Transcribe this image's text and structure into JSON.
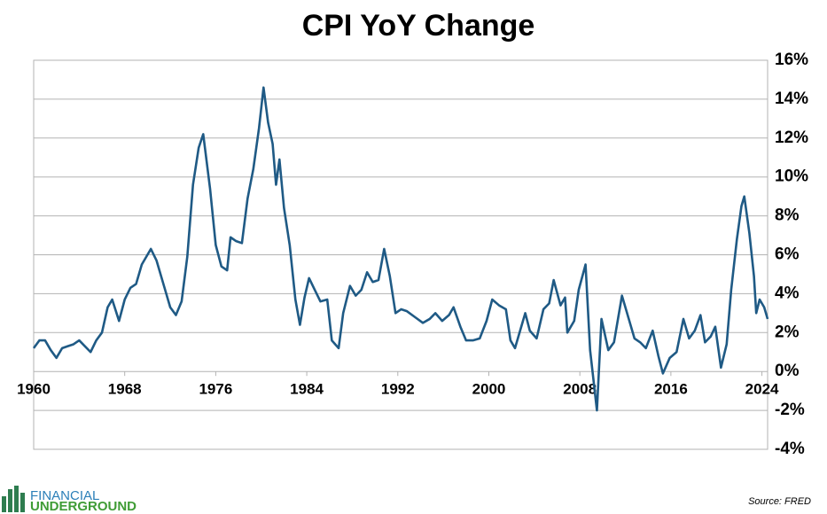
{
  "chart_data": {
    "type": "line",
    "title": "CPI YoY Change",
    "x": [
      1960.0,
      1960.5,
      1961.0,
      1961.5,
      1962.0,
      1962.5,
      1963.0,
      1963.5,
      1964.0,
      1964.5,
      1965.0,
      1965.5,
      1966.0,
      1966.5,
      1966.9,
      1967.5,
      1968.0,
      1968.5,
      1969.0,
      1969.5,
      1970.0,
      1970.3,
      1970.8,
      1971.5,
      1972.0,
      1972.5,
      1973.0,
      1973.5,
      1974.0,
      1974.5,
      1974.9,
      1975.5,
      1976.0,
      1976.5,
      1977.0,
      1977.3,
      1977.8,
      1978.3,
      1978.8,
      1979.3,
      1979.8,
      1980.2,
      1980.6,
      1981.0,
      1981.3,
      1981.6,
      1982.0,
      1982.5,
      1983.0,
      1983.4,
      1983.8,
      1984.2,
      1984.7,
      1985.2,
      1985.8,
      1986.2,
      1986.8,
      1987.2,
      1987.8,
      1988.3,
      1988.8,
      1989.3,
      1989.8,
      1990.3,
      1990.8,
      1991.3,
      1991.8,
      1992.3,
      1992.8,
      1993.5,
      1994.2,
      1994.8,
      1995.3,
      1995.9,
      1996.5,
      1996.9,
      1997.5,
      1998.0,
      1998.6,
      1999.2,
      1999.8,
      2000.3,
      2000.9,
      2001.5,
      2001.9,
      2002.3,
      2002.9,
      2003.2,
      2003.6,
      2004.2,
      2004.8,
      2005.3,
      2005.7,
      2006.3,
      2006.7,
      2006.9,
      2007.5,
      2007.9,
      2008.5,
      2008.9,
      2009.5,
      2009.9,
      2010.5,
      2011.0,
      2011.7,
      2012.3,
      2012.8,
      2013.3,
      2013.8,
      2014.4,
      2014.9,
      2015.3,
      2015.9,
      2016.5,
      2017.1,
      2017.6,
      2018.1,
      2018.6,
      2019.0,
      2019.5,
      2019.9,
      2020.4,
      2020.9,
      2021.3,
      2021.8,
      2022.2,
      2022.45,
      2022.9,
      2023.3,
      2023.5,
      2023.8,
      2024.2,
      2024.5
    ],
    "series": [
      {
        "color": "#1f5a85",
        "values": [
          1.2,
          1.6,
          1.6,
          1.1,
          0.7,
          1.2,
          1.3,
          1.4,
          1.6,
          1.3,
          1.0,
          1.6,
          2.0,
          3.3,
          3.7,
          2.6,
          3.7,
          4.3,
          4.5,
          5.5,
          6.0,
          6.3,
          5.7,
          4.3,
          3.3,
          2.9,
          3.6,
          5.9,
          9.6,
          11.5,
          12.2,
          9.4,
          6.5,
          5.4,
          5.2,
          6.9,
          6.7,
          6.6,
          8.9,
          10.4,
          12.5,
          14.6,
          12.8,
          11.7,
          9.6,
          10.9,
          8.4,
          6.5,
          3.7,
          2.4,
          3.8,
          4.8,
          4.2,
          3.6,
          3.7,
          1.6,
          1.2,
          3.0,
          4.4,
          3.9,
          4.2,
          5.1,
          4.6,
          4.7,
          6.3,
          4.9,
          3.0,
          3.2,
          3.1,
          2.8,
          2.5,
          2.7,
          3.0,
          2.6,
          2.9,
          3.3,
          2.3,
          1.6,
          1.6,
          1.7,
          2.6,
          3.7,
          3.4,
          3.2,
          1.6,
          1.2,
          2.4,
          3.0,
          2.1,
          1.7,
          3.2,
          3.5,
          4.7,
          3.4,
          3.8,
          2.0,
          2.6,
          4.2,
          5.5,
          1.1,
          -2.0,
          2.7,
          1.1,
          1.5,
          3.9,
          2.7,
          1.7,
          1.5,
          1.2,
          2.1,
          0.8,
          -0.1,
          0.7,
          1.0,
          2.7,
          1.7,
          2.1,
          2.9,
          1.5,
          1.8,
          2.3,
          0.2,
          1.4,
          4.2,
          6.8,
          8.5,
          9.0,
          7.1,
          4.9,
          3.0,
          3.7,
          3.3,
          2.7
        ]
      }
    ],
    "xlim": [
      1960,
      2024.5
    ],
    "xticks": [
      1960,
      1968,
      1976,
      1984,
      1992,
      2000,
      2008,
      2016,
      2024
    ],
    "ylim": [
      -4,
      16
    ],
    "yticks": [
      {
        "value": -4,
        "label": "-4%"
      },
      {
        "value": -2,
        "label": "-2%"
      },
      {
        "value": 0,
        "label": "0%"
      },
      {
        "value": 2,
        "label": "2%"
      },
      {
        "value": 4,
        "label": "4%"
      },
      {
        "value": 6,
        "label": "6%"
      },
      {
        "value": 8,
        "label": "8%"
      },
      {
        "value": 10,
        "label": "10%"
      },
      {
        "value": 12,
        "label": "12%"
      },
      {
        "value": 14,
        "label": "14%"
      },
      {
        "value": 16,
        "label": "16%"
      }
    ],
    "grid": true,
    "source": "Source: FRED",
    "logo_top": "FINANCIAL",
    "logo_bottom": "UNDERGROUND"
  }
}
